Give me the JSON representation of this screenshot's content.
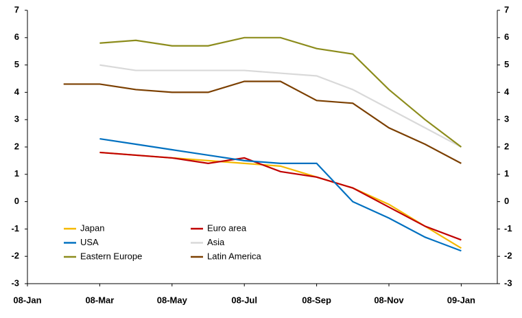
{
  "chart_data": {
    "type": "line",
    "categories": [
      "08-Jan",
      null,
      "08-Mar",
      null,
      "08-May",
      null,
      "08-Jul",
      null,
      "08-Sep",
      null,
      "08-Nov",
      null,
      "09-Jan"
    ],
    "series": [
      {
        "name": "Japan",
        "color": "#f5b800",
        "values": [
          null,
          null,
          1.8,
          1.7,
          1.6,
          1.5,
          1.4,
          1.3,
          0.9,
          0.5,
          -0.1,
          -0.9,
          -1.7
        ]
      },
      {
        "name": "Euro area",
        "color": "#c00000",
        "values": [
          null,
          null,
          1.8,
          1.7,
          1.6,
          1.4,
          1.6,
          1.1,
          0.9,
          0.5,
          -0.2,
          -0.9,
          -1.4
        ]
      },
      {
        "name": "USA",
        "color": "#0070c0",
        "values": [
          null,
          null,
          2.3,
          2.1,
          1.9,
          1.7,
          1.5,
          1.4,
          1.4,
          0.0,
          -0.6,
          -1.3,
          -1.8
        ]
      },
      {
        "name": "Asia",
        "color": "#d9d9d9",
        "values": [
          null,
          null,
          5.0,
          4.8,
          4.8,
          4.8,
          4.8,
          4.7,
          4.6,
          4.1,
          3.4,
          2.7,
          2.0
        ]
      },
      {
        "name": "Eastern Europe",
        "color": "#8c8c1c",
        "values": [
          null,
          null,
          5.8,
          5.9,
          5.7,
          5.7,
          6.0,
          6.0,
          5.6,
          5.4,
          4.1,
          3.0,
          2.0
        ]
      },
      {
        "name": "Latin America",
        "color": "#7b3f00",
        "values": [
          null,
          4.3,
          4.3,
          4.1,
          4.0,
          4.0,
          4.4,
          4.4,
          3.7,
          3.6,
          2.7,
          2.1,
          1.4
        ]
      }
    ],
    "ylim": [
      -3,
      7
    ],
    "yticks": [
      -3,
      -2,
      -1,
      0,
      1,
      2,
      3,
      4,
      5,
      6,
      7
    ],
    "y2lim": [
      -3,
      7
    ],
    "y2ticks": [
      -3,
      -2,
      -1,
      0,
      1,
      2,
      3,
      4,
      5,
      6,
      7
    ],
    "grid": false
  }
}
